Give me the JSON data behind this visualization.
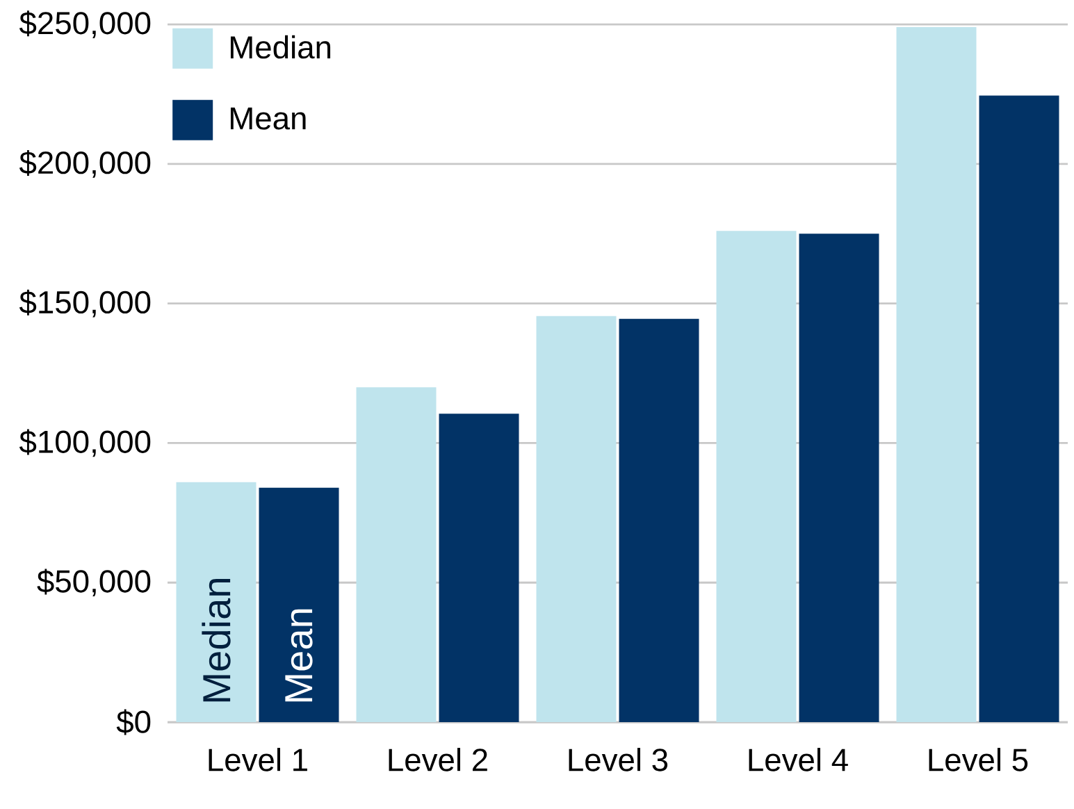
{
  "chart_data": {
    "type": "bar",
    "categories": [
      "Level 1",
      "Level 2",
      "Level 3",
      "Level 4",
      "Level 5"
    ],
    "series": [
      {
        "name": "Median",
        "color": "#bfe4ed",
        "values": [
          86000,
          120000,
          145500,
          176000,
          249000
        ]
      },
      {
        "name": "Mean",
        "color": "#023366",
        "values": [
          84000,
          110500,
          144500,
          175000,
          224500
        ]
      }
    ],
    "ylim": [
      0,
      250000
    ],
    "yticks": [
      {
        "value": 0,
        "label": "$0"
      },
      {
        "value": 50000,
        "label": "$50,000"
      },
      {
        "value": 100000,
        "label": "$100,000"
      },
      {
        "value": 150000,
        "label": "$150,000"
      },
      {
        "value": 200000,
        "label": "$200,000"
      },
      {
        "value": 250000,
        "label": "$250,000"
      }
    ],
    "annotations": [
      "Median",
      "Mean"
    ],
    "grid": "y",
    "legend": "top left"
  }
}
